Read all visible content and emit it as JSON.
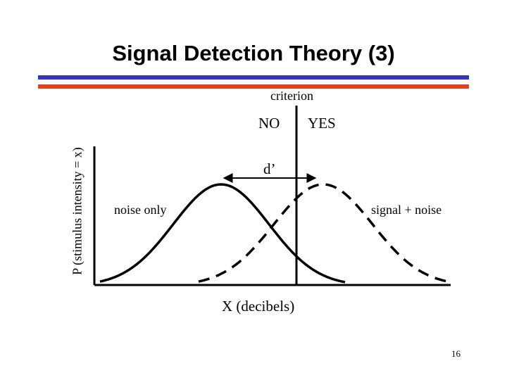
{
  "slide": {
    "title": "Signal Detection Theory (3)",
    "page_number": "16",
    "colors": {
      "blue_rule": "#3333cc",
      "red_rule": "#e8401c",
      "ink": "#000000"
    }
  },
  "diagram": {
    "criterion_label": "criterion",
    "no_label": "NO",
    "yes_label": "YES",
    "dprime_label": "d’",
    "noise_label": "noise only",
    "signal_label": "signal + noise",
    "x_axis_label": "X (decibels)",
    "y_axis_label": "P (stimulus intensity = x)"
  }
}
